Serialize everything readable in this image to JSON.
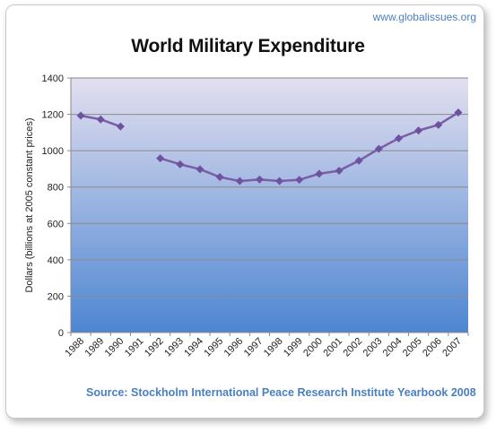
{
  "site": "www.globalissues.org",
  "source": "Source: Stockholm International Peace Research Institute Yearbook 2008",
  "colors": {
    "plot_top": "#e3dfef",
    "plot_bottom": "#4d86d2",
    "line": "#7a5ea6",
    "marker": "#6d52a0",
    "grid": "#8a8a8a",
    "site_text": "#4a7fc1"
  },
  "chart_data": {
    "type": "line",
    "title": "World Military Expenditure",
    "ylabel": "Dollars (billions at 2005 constant prices)",
    "xlabel": "",
    "ylim": [
      0,
      1400
    ],
    "yticks": [
      0,
      200,
      400,
      600,
      800,
      1000,
      1200,
      1400
    ],
    "grid": true,
    "categories": [
      "1988",
      "1989",
      "1990",
      "1991",
      "1992",
      "1993",
      "1994",
      "1995",
      "1996",
      "1997",
      "1998",
      "1999",
      "2000",
      "2001",
      "2002",
      "2003",
      "2004",
      "2005",
      "2006",
      "2007"
    ],
    "series": [
      {
        "values": [
          1193,
          1172,
          1133,
          null,
          958,
          925,
          898,
          855,
          833,
          842,
          833,
          840,
          873,
          890,
          945,
          1010,
          1068,
          1111,
          1142,
          1210
        ]
      }
    ]
  }
}
